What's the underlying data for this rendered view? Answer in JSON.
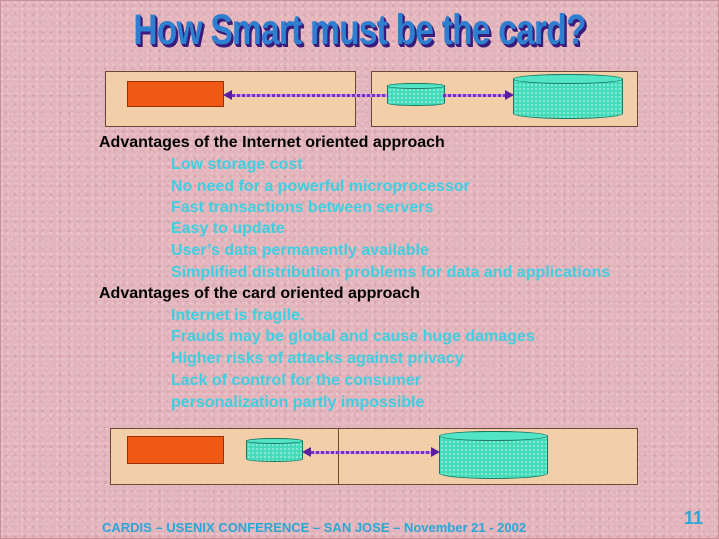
{
  "slide": {
    "title": "How Smart must be the card?",
    "section_internet": {
      "heading": "Advantages of the Internet oriented approach",
      "items": [
        "Low storage cost",
        "No need for a powerful microprocessor",
        "Fast transactions between servers",
        "Easy to update",
        "User’s data permanently available",
        "Simplified distribution problems for data and applications"
      ]
    },
    "section_card": {
      "heading": "Advantages of the card oriented approach",
      "items": [
        "Internet is fragile.",
        "Frauds may be global and cause huge damages",
        "Higher risks of attacks against privacy",
        "Lack of control for the consumer",
        "personalization partly impossible"
      ]
    },
    "footer": "CARDIS – USENIX CONFERENCE – SAN JOSE –  November 21 - 2002",
    "page_number": "11"
  },
  "colors": {
    "background": "#e3b3bb",
    "title": "#2e7fd0",
    "item_text": "#3ecfe0",
    "card": "#f05a14",
    "database": "#3fdbb8",
    "box": "#f2cfa8",
    "link": "#7a2fc0"
  }
}
